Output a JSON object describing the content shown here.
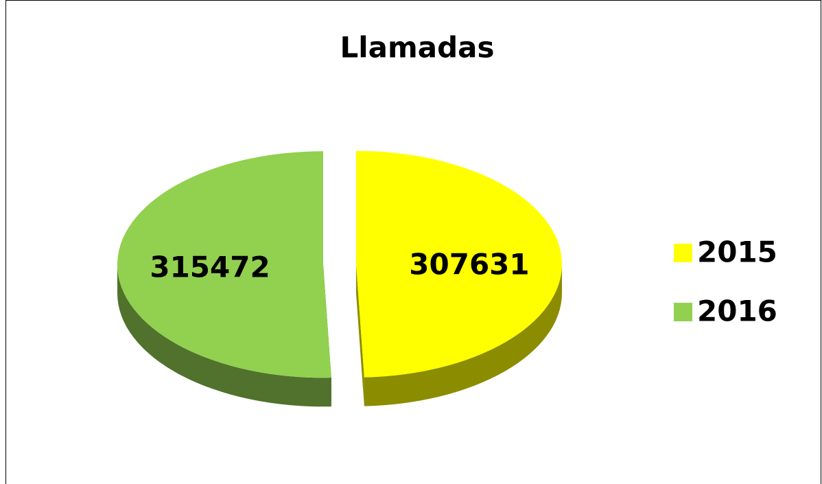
{
  "chart_data": {
    "type": "pie",
    "title": "Llamadas",
    "categories": [
      "2015",
      "2016"
    ],
    "values": [
      307631,
      315472
    ],
    "colors": [
      "#ffff00",
      "#92d050"
    ],
    "legend": "right",
    "exploded": true,
    "three_d": true
  }
}
